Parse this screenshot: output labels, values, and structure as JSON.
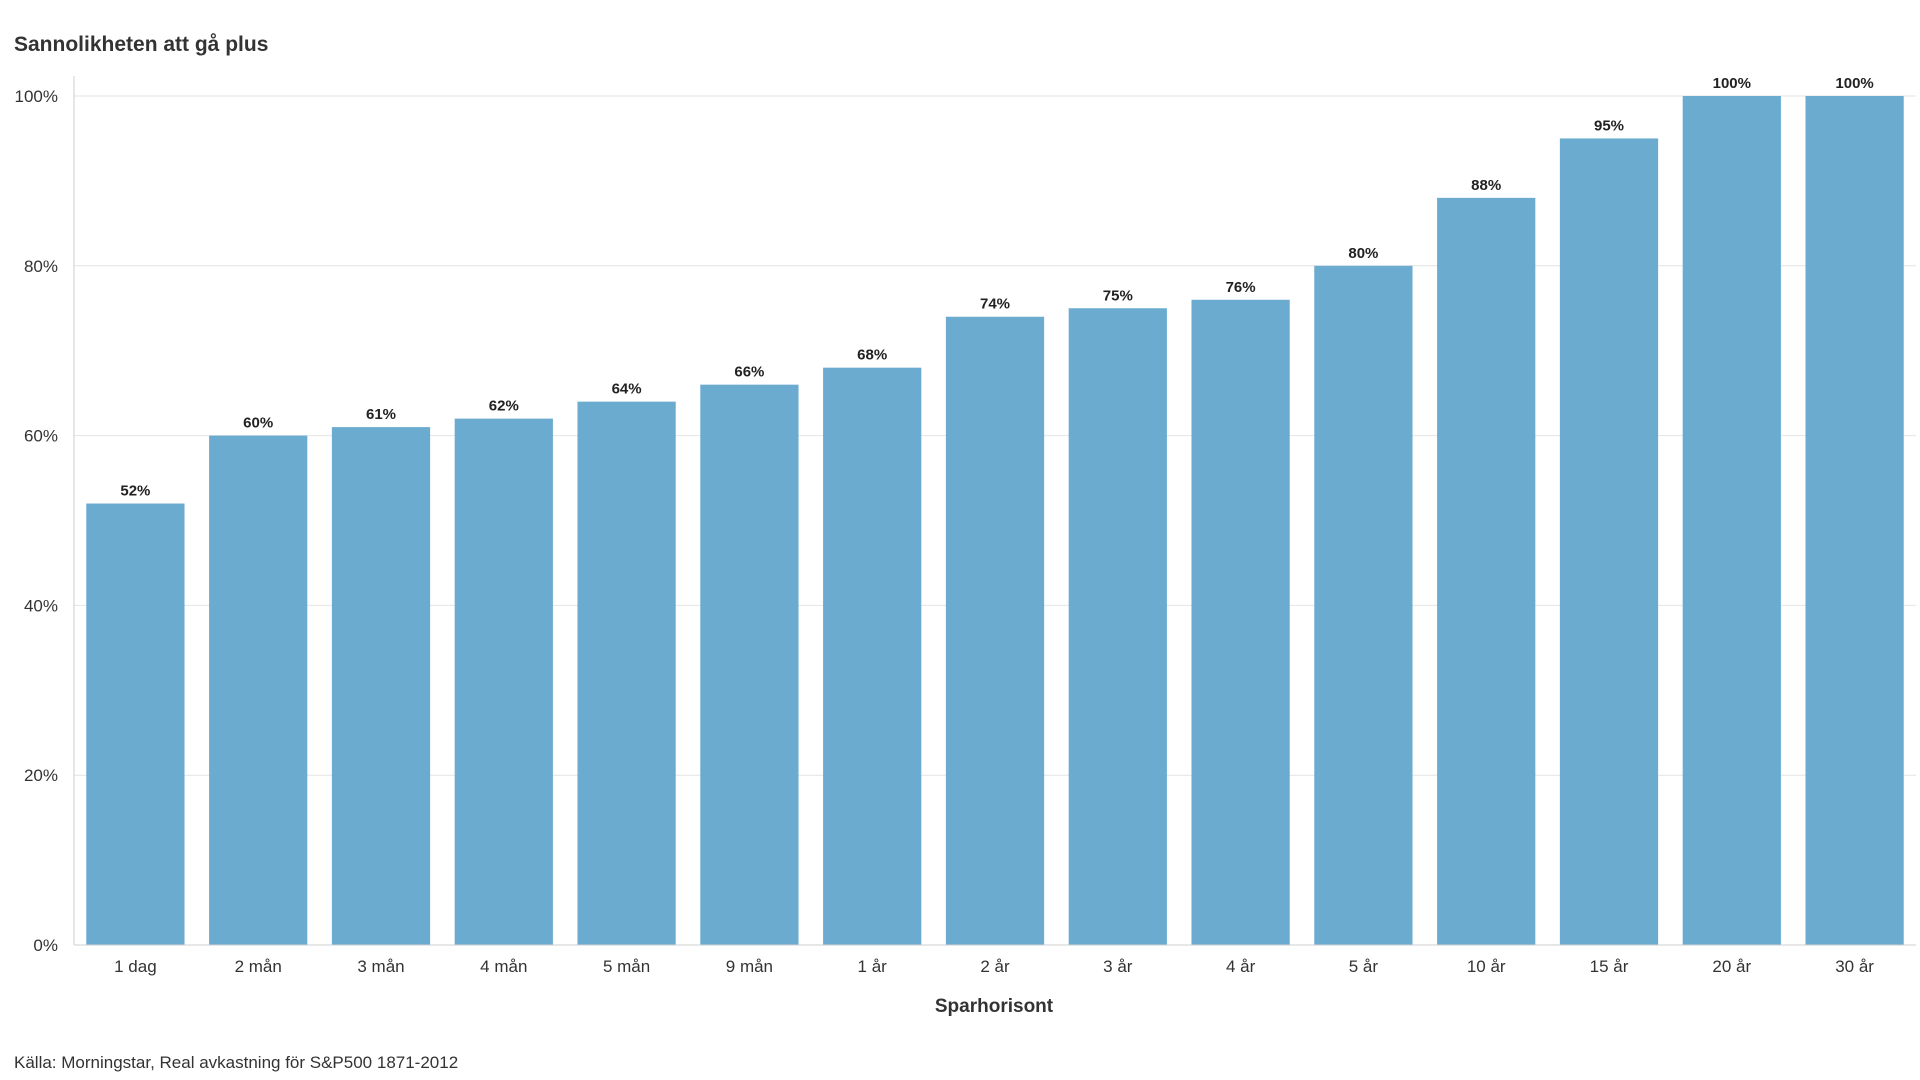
{
  "chart_data": {
    "type": "bar",
    "title": "Sannolikheten att gå plus",
    "xlabel": "Sparhorisont",
    "ylabel": "",
    "source": "Källa: Morningstar, Real avkastning för S&P500 1871-2012",
    "categories": [
      "1 dag",
      "2 mån",
      "3 mån",
      "4 mån",
      "5 mån",
      "9 mån",
      "1 år",
      "2 år",
      "3 år",
      "4 år",
      "5 år",
      "10 år",
      "15 år",
      "20 år",
      "30 år"
    ],
    "values": [
      52,
      60,
      61,
      62,
      64,
      66,
      68,
      74,
      75,
      76,
      80,
      88,
      95,
      100,
      100
    ],
    "value_labels": [
      "52%",
      "60%",
      "61%",
      "62%",
      "64%",
      "66%",
      "68%",
      "74%",
      "75%",
      "76%",
      "80%",
      "88%",
      "95%",
      "100%",
      "100%"
    ],
    "ylim": [
      0,
      100
    ],
    "yticks": [
      0,
      20,
      40,
      60,
      80,
      100
    ],
    "ytick_labels": [
      "0%",
      "20%",
      "40%",
      "60%",
      "80%",
      "100%"
    ],
    "grid": true,
    "bar_color": "#6aabcf"
  }
}
